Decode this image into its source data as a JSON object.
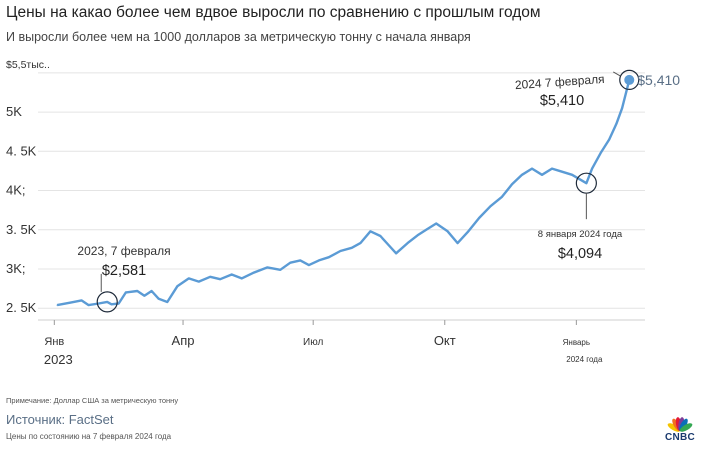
{
  "chart_data": {
    "type": "line",
    "title": "Цены на какао более чем вдвое выросли по сравнению с прошлым годом",
    "subtitle": "И выросли более чем на 1000 долларов за метрическую тонну с начала января",
    "y_ticks": [
      {
        "value": 5500,
        "label": "$5,5тыс.."
      },
      {
        "value": 5000,
        "label": "5K"
      },
      {
        "value": 4500,
        "label": "4. 5K"
      },
      {
        "value": 4000,
        "label": "4K;"
      },
      {
        "value": 3500,
        "label": "3. 5K"
      },
      {
        "value": 3000,
        "label": "3K;"
      },
      {
        "value": 2500,
        "label": "2. 5K"
      }
    ],
    "x_ticks": [
      {
        "date": "2023-01-01",
        "label": "Янв",
        "sublabel": "2023"
      },
      {
        "date": "2023-04-01",
        "label": "Апр",
        "sublabel": ""
      },
      {
        "date": "2023-07-01",
        "label": "Июл",
        "sublabel": ""
      },
      {
        "date": "2023-10-01",
        "label": "Окт",
        "sublabel": ""
      },
      {
        "date": "2024-01-01",
        "label": "Январь",
        "sublabel": "2024 года"
      }
    ],
    "ylim": [
      2350,
      5600
    ],
    "xlim": [
      "2022-12-15",
      "2024-02-18"
    ],
    "grid": true,
    "line_color": "#5b9bd5",
    "series": [
      {
        "points": [
          [
            "2023-01-03",
            2540
          ],
          [
            "2023-01-12",
            2570
          ],
          [
            "2023-01-20",
            2600
          ],
          [
            "2023-01-25",
            2540
          ],
          [
            "2023-02-01",
            2560
          ],
          [
            "2023-02-07",
            2581
          ],
          [
            "2023-02-10",
            2550
          ],
          [
            "2023-02-15",
            2560
          ],
          [
            "2023-02-20",
            2700
          ],
          [
            "2023-02-28",
            2720
          ],
          [
            "2023-03-05",
            2660
          ],
          [
            "2023-03-10",
            2720
          ],
          [
            "2023-03-15",
            2620
          ],
          [
            "2023-03-21",
            2580
          ],
          [
            "2023-03-28",
            2780
          ],
          [
            "2023-04-05",
            2880
          ],
          [
            "2023-04-12",
            2840
          ],
          [
            "2023-04-20",
            2900
          ],
          [
            "2023-04-27",
            2870
          ],
          [
            "2023-05-05",
            2930
          ],
          [
            "2023-05-12",
            2880
          ],
          [
            "2023-05-20",
            2950
          ],
          [
            "2023-05-30",
            3020
          ],
          [
            "2023-06-08",
            2990
          ],
          [
            "2023-06-15",
            3080
          ],
          [
            "2023-06-22",
            3110
          ],
          [
            "2023-06-28",
            3050
          ],
          [
            "2023-07-05",
            3110
          ],
          [
            "2023-07-12",
            3150
          ],
          [
            "2023-07-20",
            3230
          ],
          [
            "2023-07-28",
            3270
          ],
          [
            "2023-08-03",
            3330
          ],
          [
            "2023-08-10",
            3480
          ],
          [
            "2023-08-17",
            3420
          ],
          [
            "2023-08-23",
            3300
          ],
          [
            "2023-08-28",
            3200
          ],
          [
            "2023-09-05",
            3330
          ],
          [
            "2023-09-12",
            3430
          ],
          [
            "2023-09-18",
            3500
          ],
          [
            "2023-09-25",
            3580
          ],
          [
            "2023-10-03",
            3480
          ],
          [
            "2023-10-10",
            3330
          ],
          [
            "2023-10-17",
            3470
          ],
          [
            "2023-10-25",
            3650
          ],
          [
            "2023-11-02",
            3800
          ],
          [
            "2023-11-10",
            3920
          ],
          [
            "2023-11-17",
            4080
          ],
          [
            "2023-11-24",
            4200
          ],
          [
            "2023-12-01",
            4280
          ],
          [
            "2023-12-08",
            4200
          ],
          [
            "2023-12-15",
            4280
          ],
          [
            "2023-12-22",
            4240
          ],
          [
            "2023-12-29",
            4200
          ],
          [
            "2024-01-08",
            4094
          ],
          [
            "2024-01-12",
            4280
          ],
          [
            "2024-01-18",
            4480
          ],
          [
            "2024-01-24",
            4650
          ],
          [
            "2024-01-29",
            4850
          ],
          [
            "2024-02-02",
            5050
          ],
          [
            "2024-02-07",
            5410
          ]
        ]
      }
    ],
    "annotations": [
      {
        "date": "2023-02-07",
        "value": 2581,
        "label_date": "2023, 7 февраля",
        "label_value": "$2,581"
      },
      {
        "date": "2024-01-08",
        "value": 4094,
        "label_date": "8 января 2024 года",
        "label_value": "$4,094"
      },
      {
        "date": "2024-02-07",
        "value": 5410,
        "label_date": "2024 7 февраля",
        "label_value": "$5,410",
        "end_label": "$5,410"
      }
    ]
  },
  "footer": {
    "note": "Примечание: Доллар США за метрическую тонну",
    "source": "Источник: FactSet",
    "as_of": "Цены по состоянию на 7 февраля 2024 года",
    "brand": "CNBC",
    "logo_colors": [
      "#f5c400",
      "#f37021",
      "#e31937",
      "#7e3c98",
      "#0b6fb8",
      "#34a853"
    ]
  }
}
